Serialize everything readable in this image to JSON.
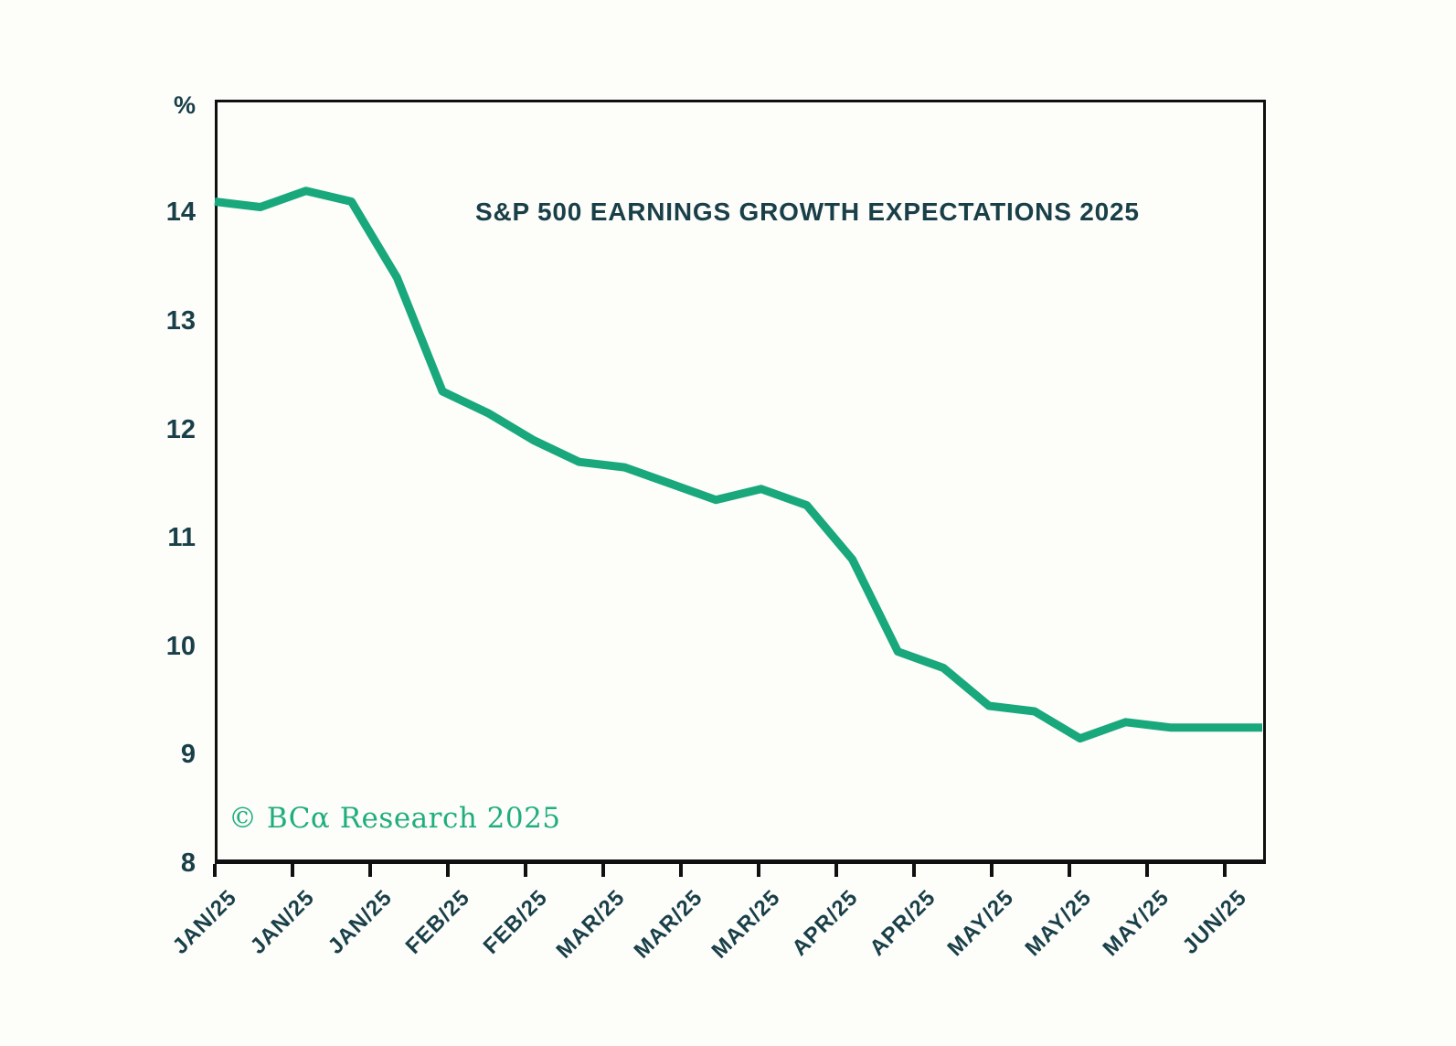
{
  "chart_data": {
    "type": "line",
    "title": "S&P 500 EARNINGS GROWTH EXPECTATIONS 2025",
    "y_unit": "%",
    "xlabel": "",
    "ylabel": "",
    "ylim": [
      8,
      15
    ],
    "y_ticks": [
      14,
      13,
      12,
      11,
      10,
      9,
      8
    ],
    "x_tick_labels": [
      "JAN/25",
      "JAN/25",
      "JAN/25",
      "FEB/25",
      "FEB/25",
      "MAR/25",
      "MAR/25",
      "MAR/25",
      "APR/25",
      "APR/25",
      "MAY/25",
      "MAY/25",
      "MAY/25",
      "JUN/25"
    ],
    "grid": false,
    "legend_position": "none",
    "series": [
      {
        "name": "S&P 500 earnings growth expectations 2025 (%)",
        "values": [
          14.1,
          14.05,
          14.2,
          14.1,
          13.4,
          12.35,
          12.15,
          11.9,
          11.7,
          11.65,
          11.5,
          11.35,
          11.45,
          11.3,
          10.8,
          9.95,
          9.8,
          9.45,
          9.4,
          9.15,
          9.3,
          9.25,
          9.25,
          9.25
        ]
      }
    ],
    "colors": {
      "line": "#18a87b",
      "text": "#193f48",
      "axis": "#101010",
      "watermark": "#1fae7d",
      "background": "#fdfdfa"
    },
    "watermark": "© BCα Research 2025"
  }
}
